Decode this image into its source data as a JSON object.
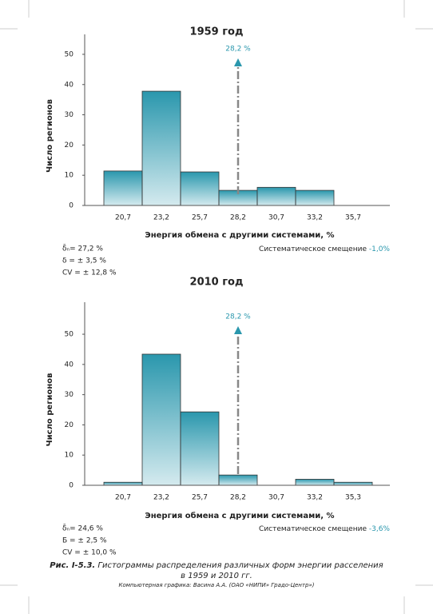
{
  "chart_data": [
    {
      "type": "bar",
      "title": "1959 год",
      "y_label": "Число регионов",
      "x_label": "Энергия обмена с другими системами, %",
      "categories": [
        "20,7",
        "23,2",
        "25,7",
        "28,2",
        "30,7",
        "33,2",
        "35,7"
      ],
      "values": [
        11.4,
        37.8,
        11.1,
        5,
        6,
        5,
        0
      ],
      "color": "#2a97ad",
      "ylim": [
        0,
        56.6
      ],
      "yticks": [
        0,
        10,
        20,
        30,
        40,
        50
      ],
      "annotation": "28,2 %",
      "stats": [
        "δ̄ₙ= 27,2 %",
        "δ = ± 3,5 %",
        "CV = ± 12,8 %"
      ],
      "bias": {
        "label": "Систематическое смещение",
        "value": "-1,0%"
      }
    },
    {
      "type": "bar",
      "title": "2010 год",
      "y_label": "Число регионов",
      "x_label": "Энергия обмена с другими системами, %",
      "categories": [
        "20,7",
        "23,2",
        "25,7",
        "28,2",
        "30,7",
        "33,2",
        "35,3"
      ],
      "values": [
        1,
        43.4,
        24.3,
        3.4,
        0,
        2,
        1
      ],
      "color": "#2a97ad",
      "ylim": [
        0,
        60.6
      ],
      "yticks": [
        0,
        10,
        20,
        30,
        40,
        50
      ],
      "annotation": "28,2 %",
      "stats": [
        "δ̄ₙ= 24,6 %",
        "Б = ± 2,5 %",
        "CV = ± 10,0 %"
      ],
      "bias": {
        "label": "Систематическое смещение",
        "value": "-3,6%"
      }
    }
  ],
  "caption": {
    "number": "Рис. I-5.3.",
    "text": "Гистограммы распределения различных форм энергии расселения",
    "text2": "в 1959 и 2010 гг.",
    "credit": "Компьютерная графика: Васина А.А. (ОАО «НИПИ» Градо-Центр»)"
  }
}
